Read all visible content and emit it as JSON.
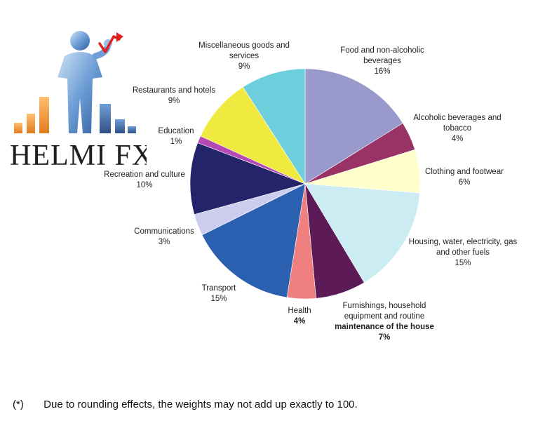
{
  "logo": {
    "text": "HELMI FX"
  },
  "footnote": {
    "marker": "(*)",
    "text": "Due to rounding effects, the weights may not add up exactly to 100."
  },
  "chart_data": {
    "type": "pie",
    "title": "",
    "unit": "%",
    "start_angle_deg": 0,
    "direction": "clockwise",
    "slices": [
      {
        "label_lines": [
          "Food and non-alcoholic",
          "beverages"
        ],
        "value_label": "16%",
        "value": 16,
        "color": "#9999cc"
      },
      {
        "label_lines": [
          "Alcoholic beverages and",
          "tobacco"
        ],
        "value_label": "4%",
        "value": 4,
        "color": "#993366"
      },
      {
        "label_lines": [
          "Clothing and footwear"
        ],
        "value_label": "6%",
        "value": 6,
        "color": "#ffffcc"
      },
      {
        "label_lines": [
          "Housing, water, electricity, gas",
          "and other fuels"
        ],
        "value_label": "15%",
        "value": 15,
        "color": "#ccecf3"
      },
      {
        "label_lines": [
          "Furnishings, household",
          "equipment and routine",
          "maintenance of the house"
        ],
        "value_label": "7%",
        "value": 7,
        "color": "#5c1a56"
      },
      {
        "label_lines": [
          "Health"
        ],
        "value_label": "4%",
        "value": 4,
        "color": "#f08080"
      },
      {
        "label_lines": [
          "Transport"
        ],
        "value_label": "15%",
        "value": 15,
        "color": "#2b5fb0"
      },
      {
        "label_lines": [
          "Communications"
        ],
        "value_label": "3%",
        "value": 3,
        "color": "#ccccee"
      },
      {
        "label_lines": [
          "Recreation and culture"
        ],
        "value_label": "10%",
        "value": 10,
        "color": "#24246b"
      },
      {
        "label_lines": [
          "Education"
        ],
        "value_label": "1%",
        "value": 1,
        "color": "#b44ab4"
      },
      {
        "label_lines": [
          "Restaurants and hotels"
        ],
        "value_label": "9%",
        "value": 9,
        "color": "#f0ea40"
      },
      {
        "label_lines": [
          "Miscellaneous goods and",
          "services"
        ],
        "value_label": "9%",
        "value": 9,
        "color": "#6ecfdc"
      }
    ]
  }
}
